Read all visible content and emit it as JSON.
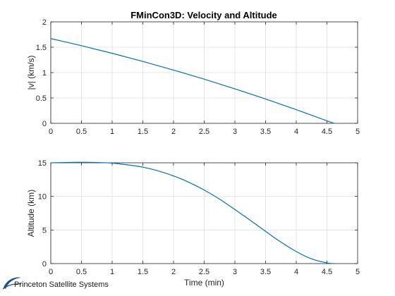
{
  "figure_title": "FMinCon3D: Velocity and Altitude",
  "logo_text": "Princeton Satellite Systems",
  "colors": {
    "line": "#0072BD",
    "axis": "#262626",
    "grid": "#dfdfdf"
  },
  "chart_data": [
    {
      "type": "line",
      "title": "FMinCon3D: Velocity and Altitude",
      "xlabel": "",
      "ylabel": "|v| (km/s)",
      "xlim": [
        0,
        5
      ],
      "ylim": [
        0,
        2
      ],
      "xticks": [
        "0",
        "0.5",
        "1",
        "1.5",
        "2",
        "2.5",
        "3",
        "3.5",
        "4",
        "4.5",
        "5"
      ],
      "yticks": [
        "0",
        "0.5",
        "1",
        "1.5",
        "2"
      ],
      "grid": true,
      "series": [
        {
          "x": [
            0,
            0.5,
            1,
            1.5,
            2,
            2.5,
            3,
            3.5,
            4,
            4.5,
            4.62
          ],
          "y": [
            1.67,
            1.53,
            1.38,
            1.22,
            1.05,
            0.87,
            0.68,
            0.48,
            0.27,
            0.05,
            0.0
          ]
        }
      ]
    },
    {
      "type": "line",
      "title": "",
      "xlabel": "Time (min)",
      "ylabel": "Altitude (km)",
      "xlim": [
        0,
        5
      ],
      "ylim": [
        0,
        15
      ],
      "xticks": [
        "0",
        "0.5",
        "1",
        "1.5",
        "2",
        "2.5",
        "3",
        "3.5",
        "4",
        "4.5",
        "5"
      ],
      "yticks": [
        "0",
        "5",
        "10",
        "15"
      ],
      "grid": true,
      "series": [
        {
          "x": [
            0,
            0.25,
            0.5,
            0.75,
            1,
            1.25,
            1.5,
            1.75,
            2,
            2.25,
            2.5,
            2.75,
            3,
            3.25,
            3.5,
            3.75,
            4,
            4.25,
            4.5,
            4.62
          ],
          "y": [
            15.0,
            15.05,
            15.08,
            15.05,
            14.95,
            14.7,
            14.35,
            13.8,
            13.05,
            12.1,
            10.95,
            9.6,
            8.05,
            6.45,
            4.8,
            3.2,
            1.8,
            0.7,
            0.1,
            0.0
          ]
        }
      ]
    }
  ]
}
